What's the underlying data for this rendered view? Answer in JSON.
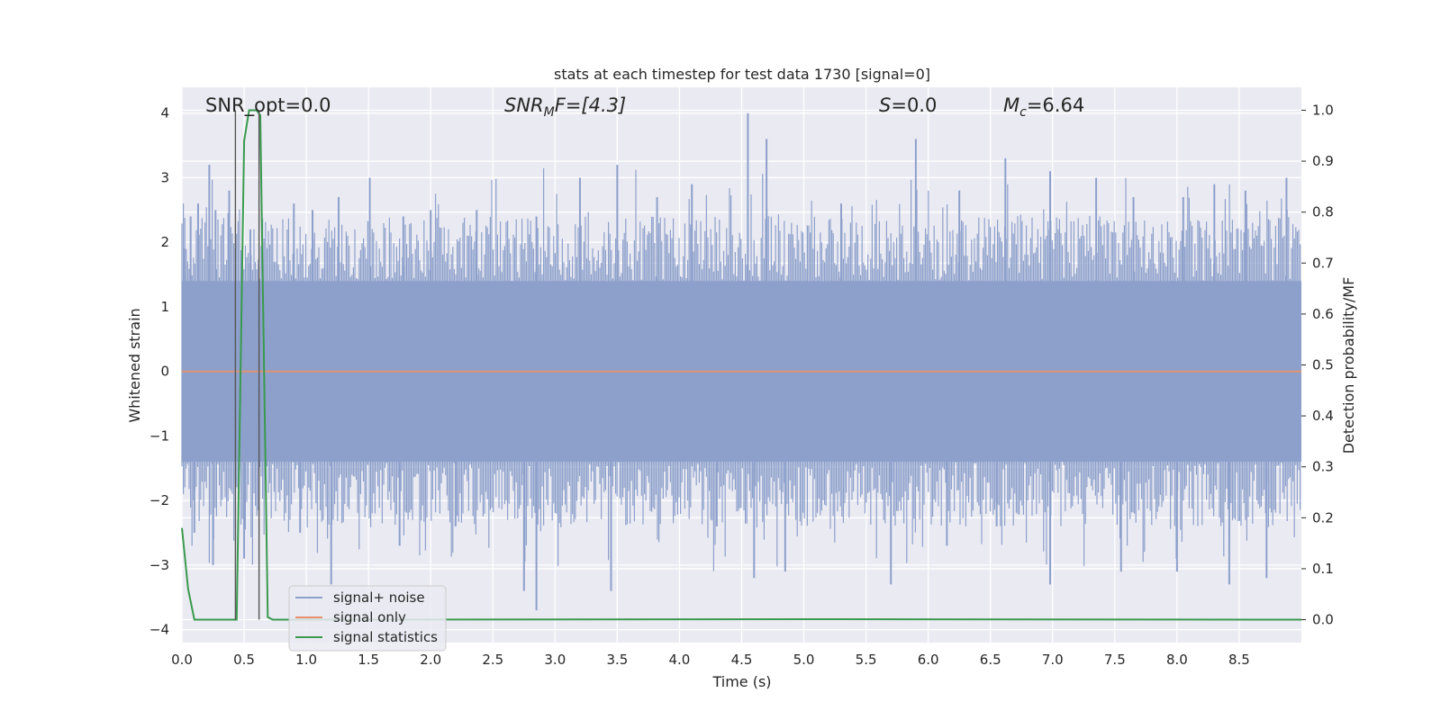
{
  "chart_data": {
    "type": "line",
    "title": "stats at each timestep for test data 1730 [signal=0]",
    "xlabel": "Time (s)",
    "ylabel_left": "Whitened strain",
    "ylabel_right": "Detection probability/MF",
    "xlim": [
      0.0,
      9.0
    ],
    "ylim_left": [
      -4.2,
      4.4
    ],
    "ylim_right": [
      -0.045,
      1.045
    ],
    "x_ticks": [
      "0.0",
      "0.5",
      "1.0",
      "1.5",
      "2.0",
      "2.5",
      "3.0",
      "3.5",
      "4.0",
      "4.5",
      "5.0",
      "5.5",
      "6.0",
      "6.5",
      "7.0",
      "7.5",
      "8.0",
      "8.5"
    ],
    "y_ticks_left": [
      "−4",
      "−3",
      "−2",
      "−1",
      "0",
      "1",
      "2",
      "3",
      "4"
    ],
    "y_ticks_right": [
      "0.0",
      "0.1",
      "0.2",
      "0.3",
      "0.4",
      "0.5",
      "0.6",
      "0.7",
      "0.8",
      "0.9",
      "1.0"
    ],
    "grid": true,
    "annotations": {
      "snr_opt": "SNR_opt=0.0",
      "snr_mf_main": "SNR",
      "snr_mf_sub": "M",
      "snr_mf_rest": "F=[4.3]",
      "s_main": "S",
      "s_rest": "=0.0",
      "mc_main": "M",
      "mc_sub": "c",
      "mc_rest": "=6.64"
    },
    "vertical_markers_x": [
      0.43,
      0.62
    ],
    "series": [
      {
        "name": "signal+ noise",
        "axis": "left",
        "description_type": "noise",
        "color": "#8da0cb",
        "spikes_top": [
          {
            "x": 0.02,
            "y": 1.9
          },
          {
            "x": 0.07,
            "y": 2.4
          },
          {
            "x": 0.13,
            "y": 2.6
          },
          {
            "x": 0.22,
            "y": 3.2
          },
          {
            "x": 0.27,
            "y": 2.5
          },
          {
            "x": 0.38,
            "y": 2.8
          },
          {
            "x": 0.55,
            "y": 2.2
          },
          {
            "x": 0.9,
            "y": 2.6
          },
          {
            "x": 1.05,
            "y": 2.5
          },
          {
            "x": 1.26,
            "y": 2.7
          },
          {
            "x": 1.51,
            "y": 3.0
          },
          {
            "x": 1.78,
            "y": 2.4
          },
          {
            "x": 2.0,
            "y": 2.5
          },
          {
            "x": 2.37,
            "y": 2.5
          },
          {
            "x": 2.85,
            "y": 2.4
          },
          {
            "x": 3.2,
            "y": 3.0
          },
          {
            "x": 3.5,
            "y": 3.2
          },
          {
            "x": 3.82,
            "y": 2.7
          },
          {
            "x": 4.1,
            "y": 2.9
          },
          {
            "x": 4.55,
            "y": 4.0
          },
          {
            "x": 4.7,
            "y": 3.6
          },
          {
            "x": 5.3,
            "y": 2.6
          },
          {
            "x": 5.9,
            "y": 3.6
          },
          {
            "x": 6.25,
            "y": 2.8
          },
          {
            "x": 6.62,
            "y": 3.3
          },
          {
            "x": 6.98,
            "y": 3.1
          },
          {
            "x": 7.35,
            "y": 3.0
          },
          {
            "x": 7.65,
            "y": 2.7
          },
          {
            "x": 8.05,
            "y": 2.7
          },
          {
            "x": 8.3,
            "y": 2.9
          },
          {
            "x": 8.55,
            "y": 2.8
          },
          {
            "x": 8.88,
            "y": 3.0
          }
        ],
        "spikes_bottom": [
          {
            "x": 0.1,
            "y": -2.5
          },
          {
            "x": 0.25,
            "y": -3.0
          },
          {
            "x": 0.5,
            "y": -2.9
          },
          {
            "x": 0.95,
            "y": -2.5
          },
          {
            "x": 1.2,
            "y": -3.3
          },
          {
            "x": 1.75,
            "y": -2.7
          },
          {
            "x": 2.2,
            "y": -2.4
          },
          {
            "x": 2.75,
            "y": -3.4
          },
          {
            "x": 2.85,
            "y": -3.7
          },
          {
            "x": 3.45,
            "y": -3.4
          },
          {
            "x": 4.3,
            "y": -2.4
          },
          {
            "x": 4.6,
            "y": -3.2
          },
          {
            "x": 4.85,
            "y": -3.1
          },
          {
            "x": 5.7,
            "y": -3.3
          },
          {
            "x": 6.15,
            "y": -2.7
          },
          {
            "x": 6.55,
            "y": -2.4
          },
          {
            "x": 6.98,
            "y": -3.3
          },
          {
            "x": 7.55,
            "y": -3.1
          },
          {
            "x": 8.0,
            "y": -3.1
          },
          {
            "x": 8.42,
            "y": -3.3
          },
          {
            "x": 8.72,
            "y": -3.2
          }
        ],
        "band": [
          -1.4,
          1.4
        ]
      },
      {
        "name": "signal only",
        "axis": "left",
        "color": "#e5906a",
        "x": [
          0.0,
          9.0
        ],
        "y": [
          0.0,
          0.0
        ]
      },
      {
        "name": "signal statistics",
        "axis": "right",
        "color": "#3a9a4e",
        "x": [
          0.0,
          0.05,
          0.1,
          0.44,
          0.5,
          0.54,
          0.56,
          0.6,
          0.63,
          0.69,
          0.73,
          0.8,
          5.3,
          9.0
        ],
        "y": [
          0.18,
          0.06,
          0.0,
          0.0,
          0.94,
          1.0,
          1.0,
          1.0,
          0.99,
          0.005,
          0.0,
          0.0,
          0.001,
          0.0
        ]
      }
    ],
    "legend_position": "lower-left"
  }
}
